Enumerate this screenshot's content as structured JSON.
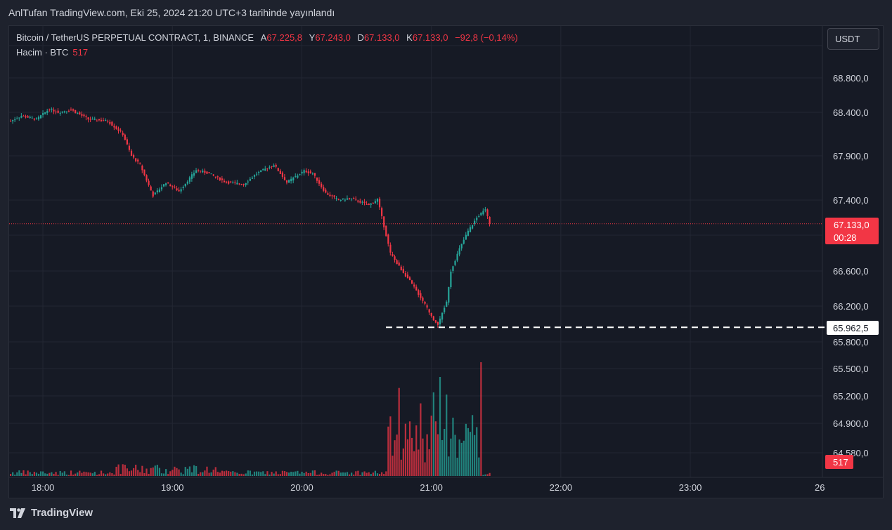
{
  "header": {
    "published": "AnlTufan TradingView.com, Eki 25, 2024 21:20 UTC+3 tarihinde yayınlandı"
  },
  "legend": {
    "symbol": "Bitcoin / TetherUS PERPETUAL CONTRACT, 1, BINANCE",
    "open_label": "A",
    "open": "67.225,8",
    "high_label": "Y",
    "high": "67.243,0",
    "low_label": "D",
    "low": "67.133,0",
    "close_label": "K",
    "close": "67.133,0",
    "change": "−92,8 (−0,14%)",
    "volume_label": "Hacim · BTC",
    "volume": "517"
  },
  "currency_button": "USDT",
  "current_price": {
    "value": "67.133,0",
    "countdown": "00:28"
  },
  "support_level": {
    "label": "65.962,5",
    "price": 65962.5
  },
  "volume_badge": "517",
  "footer": {
    "brand": "TradingView"
  },
  "colors": {
    "up": "#26a69a",
    "down": "#f23645",
    "background": "#161a25",
    "grid": "#232733"
  },
  "chart_data": {
    "type": "candlestick",
    "symbol": "BTCUSDT.P",
    "interval": "1",
    "y_ticks": [
      "68.800,0",
      "68.400,0",
      "67.900,0",
      "67.400,0",
      "66.600,0",
      "66.200,0",
      "65.800,0",
      "65.500,0",
      "65.200,0",
      "64.900,0",
      "64.580,0"
    ],
    "x_ticks": [
      "18:00",
      "19:00",
      "20:00",
      "21:00",
      "22:00",
      "23:00",
      "26"
    ],
    "price_path_minutes": [
      0,
      5,
      12,
      18,
      22,
      28,
      36,
      45,
      52,
      56,
      60,
      66,
      72,
      78,
      86,
      92,
      100,
      108,
      114,
      122,
      128,
      136,
      140,
      146,
      152,
      157,
      162,
      166,
      170,
      176,
      180,
      186,
      190,
      196,
      198,
      202,
      204,
      208,
      212,
      216,
      220,
      222
    ],
    "price_path": [
      68300,
      68360,
      68320,
      68440,
      68400,
      68430,
      68320,
      68300,
      68150,
      67900,
      67800,
      67450,
      67600,
      67500,
      67740,
      67700,
      67600,
      67580,
      67700,
      67800,
      67600,
      67730,
      67700,
      67480,
      67400,
      67420,
      67380,
      67340,
      67410,
      66800,
      66650,
      66450,
      66300,
      66050,
      65990,
      66250,
      66600,
      66850,
      67050,
      67200,
      67300,
      67133
    ],
    "volume_bars": [
      {
        "minute": 180,
        "volume": 400,
        "direction": "down"
      },
      {
        "minute": 190,
        "volume": 330,
        "direction": "down"
      },
      {
        "minute": 196,
        "volume": 380,
        "direction": "up"
      },
      {
        "minute": 199,
        "volume": 450,
        "direction": "up"
      },
      {
        "minute": 202,
        "volume": 370,
        "direction": "up"
      },
      {
        "minute": 218,
        "volume": 517,
        "direction": "down"
      }
    ],
    "current_price": 67133,
    "support_level": 65962.5
  }
}
